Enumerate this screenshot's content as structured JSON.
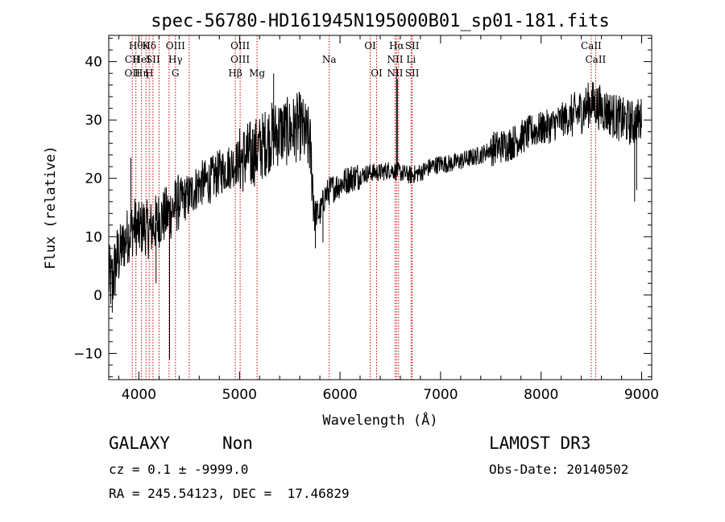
{
  "chart_data": {
    "type": "line",
    "title": "spec-56780-HD161945N195000B01_sp01-181.fits",
    "xlabel": "Wavelength (Å)",
    "ylabel": "Flux (relative)",
    "xlim": [
      3700,
      9100
    ],
    "ylim": [
      -14.5,
      44.5
    ],
    "xticks": [
      4000,
      5000,
      6000,
      7000,
      8000,
      9000
    ],
    "yticks": [
      -10,
      0,
      10,
      20,
      30,
      40
    ],
    "anchors": [
      [
        3700,
        3
      ],
      [
        3730,
        2
      ],
      [
        3780,
        6
      ],
      [
        3830,
        8
      ],
      [
        3880,
        10
      ],
      [
        3920,
        11
      ],
      [
        3960,
        12
      ],
      [
        4000,
        11
      ],
      [
        4050,
        12
      ],
      [
        4100,
        11
      ],
      [
        4150,
        12
      ],
      [
        4200,
        13
      ],
      [
        4300,
        14
      ],
      [
        4400,
        16
      ],
      [
        4500,
        17
      ],
      [
        4600,
        19
      ],
      [
        4700,
        19.5
      ],
      [
        4800,
        21
      ],
      [
        4900,
        22
      ],
      [
        5000,
        23
      ],
      [
        5100,
        24
      ],
      [
        5200,
        25
      ],
      [
        5300,
        27
      ],
      [
        5400,
        28
      ],
      [
        5500,
        28
      ],
      [
        5600,
        29
      ],
      [
        5700,
        26
      ],
      [
        5750,
        14
      ],
      [
        5800,
        14
      ],
      [
        5850,
        17
      ],
      [
        5900,
        18
      ],
      [
        6000,
        19
      ],
      [
        6100,
        20
      ],
      [
        6200,
        20.5
      ],
      [
        6300,
        21
      ],
      [
        6400,
        21
      ],
      [
        6500,
        21.5
      ],
      [
        6600,
        21
      ],
      [
        6700,
        20.5
      ],
      [
        6800,
        21
      ],
      [
        6900,
        22
      ],
      [
        7000,
        22.5
      ],
      [
        7100,
        22.5
      ],
      [
        7200,
        23
      ],
      [
        7300,
        23.5
      ],
      [
        7400,
        24
      ],
      [
        7500,
        25
      ],
      [
        7600,
        25.5
      ],
      [
        7700,
        26
      ],
      [
        7800,
        27
      ],
      [
        7900,
        28
      ],
      [
        8000,
        28.5
      ],
      [
        8100,
        29
      ],
      [
        8200,
        30
      ],
      [
        8300,
        30.5
      ],
      [
        8400,
        31.5
      ],
      [
        8500,
        33
      ],
      [
        8600,
        32
      ],
      [
        8700,
        31
      ],
      [
        8800,
        30
      ],
      [
        8900,
        29.5
      ],
      [
        9000,
        30
      ]
    ],
    "features": [
      {
        "x": 5755,
        "y": 8
      },
      {
        "x": 5830,
        "y": 9
      },
      {
        "x": 5118,
        "y": 19
      },
      {
        "x": 4305,
        "y": -11
      },
      {
        "x": 4170,
        "y": 2
      },
      {
        "x": 3920,
        "y": 23.5
      },
      {
        "x": 5340,
        "y": 38
      },
      {
        "x": 6563,
        "y": 39
      },
      {
        "x": 6570,
        "y": 37
      },
      {
        "x": 8930,
        "y": 16
      },
      {
        "x": 8950,
        "y": 18
      },
      {
        "x": 3735,
        "y": -3
      }
    ],
    "spectral_lines": [
      {
        "x": 3934,
        "labels": [
          {
            "text": "CII",
            "row": 2
          },
          {
            "text": "OII",
            "row": 3
          }
        ]
      },
      {
        "x": 3970,
        "labels": [
          {
            "text": "Hθ",
            "row": 1
          }
        ]
      },
      {
        "x": 4026,
        "labels": [
          {
            "text": "HeI",
            "row": 2
          },
          {
            "text": "Hη",
            "row": 3
          }
        ]
      },
      {
        "x": 4070,
        "labels": [
          {
            "text": "K",
            "row": 1
          }
        ]
      },
      {
        "x": 4102,
        "labels": [
          {
            "text": "Hδ",
            "row": 1
          },
          {
            "text": "H",
            "row": 3
          }
        ]
      },
      {
        "x": 4140,
        "labels": [
          {
            "text": "SII",
            "row": 2
          }
        ]
      },
      {
        "x": 4200,
        "labels": []
      },
      {
        "x": 4300,
        "labels": []
      },
      {
        "x": 4363,
        "labels": [
          {
            "text": "OIII",
            "row": 1
          },
          {
            "text": "Hγ",
            "row": 2
          },
          {
            "text": "G",
            "row": 3
          }
        ]
      },
      {
        "x": 4500,
        "labels": []
      },
      {
        "x": 4959,
        "labels": [
          {
            "text": "Hβ",
            "row": 3
          }
        ]
      },
      {
        "x": 5007,
        "labels": [
          {
            "text": "OIII",
            "row": 1
          },
          {
            "text": "OIII",
            "row": 2
          }
        ]
      },
      {
        "x": 5175,
        "labels": [
          {
            "text": "Mg",
            "row": 3
          }
        ]
      },
      {
        "x": 5893,
        "labels": [
          {
            "text": "Na",
            "row": 2
          }
        ]
      },
      {
        "x": 6300,
        "labels": [
          {
            "text": "OI",
            "row": 1
          }
        ]
      },
      {
        "x": 6364,
        "labels": [
          {
            "text": "OI",
            "row": 3
          }
        ]
      },
      {
        "x": 6548,
        "labels": [
          {
            "text": "NII",
            "row": 2
          },
          {
            "text": "NII",
            "row": 3
          }
        ]
      },
      {
        "x": 6563,
        "labels": [
          {
            "text": "Hα",
            "row": 1
          }
        ]
      },
      {
        "x": 6583,
        "labels": []
      },
      {
        "x": 6707,
        "labels": [
          {
            "text": "Li",
            "row": 2
          }
        ]
      },
      {
        "x": 6717,
        "labels": [
          {
            "text": "SII",
            "row": 1
          },
          {
            "text": "SII",
            "row": 3
          }
        ]
      },
      {
        "x": 8498,
        "labels": [
          {
            "text": "CaII",
            "row": 1
          }
        ]
      },
      {
        "x": 8542,
        "labels": [
          {
            "text": "CaII",
            "row": 2
          }
        ]
      }
    ]
  },
  "footer": {
    "classification": "GALAXY",
    "subclass": "Non",
    "survey": "LAMOST DR3",
    "redshift": "cz = 0.1 ± -9999.0",
    "obs_date": "Obs-Date: 20140502",
    "coords": "RA = 245.54123, DEC =  17.46829"
  },
  "colors": {
    "spectrum": "#000000",
    "line_marker": "#cc0000",
    "axis": "#000000"
  }
}
